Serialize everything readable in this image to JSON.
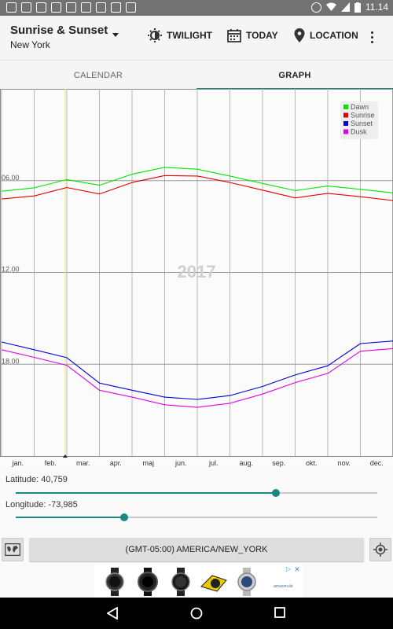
{
  "status_bar": {
    "time": "11.14"
  },
  "app_bar": {
    "title": "Sunrise & Sunset",
    "subtitle": "New York",
    "actions": [
      {
        "label": "TWILIGHT",
        "icon": "twilight-sun-icon"
      },
      {
        "label": "TODAY",
        "icon": "calendar-icon"
      },
      {
        "label": "LOCATION",
        "icon": "location-pin-icon"
      }
    ]
  },
  "tabs": [
    {
      "label": "CALENDAR",
      "selected": false
    },
    {
      "label": "GRAPH",
      "selected": true
    }
  ],
  "chart_data": {
    "type": "line",
    "year_label": "2017",
    "x_ticks": [
      "jan.",
      "feb.",
      "mar.",
      "apr.",
      "maj",
      "jun.",
      "jul.",
      "aug.",
      "sep.",
      "okt.",
      "nov.",
      "dec."
    ],
    "y_ticks": [
      "06.00",
      "12.00",
      "18.00"
    ],
    "y_axis": "time of day (hours), 0 at top, 24 at bottom",
    "ylim": [
      0,
      24
    ],
    "dst_start_month": 2.4,
    "dst_end_month": 10.2,
    "legend_position": "top-right",
    "series": [
      {
        "name": "Dawn",
        "color": "#00e600",
        "times": [
          6.69,
          6.47,
          5.93,
          6.3,
          5.58,
          5.13,
          5.25,
          5.7,
          6.18,
          6.65,
          6.35,
          6.57,
          6.8
        ]
      },
      {
        "name": "Sunrise",
        "color": "#e00000",
        "times": [
          7.2,
          7.0,
          6.45,
          6.87,
          6.12,
          5.67,
          5.7,
          6.12,
          6.62,
          7.13,
          6.83,
          7.05,
          7.3
        ]
      },
      {
        "name": "Sunset",
        "color": "#0000d8",
        "times": [
          16.55,
          17.05,
          17.57,
          19.23,
          19.7,
          20.15,
          20.3,
          20.05,
          19.45,
          18.7,
          18.1,
          16.65,
          16.48
        ]
      },
      {
        "name": "Dusk",
        "color": "#e000e0",
        "times": [
          17.05,
          17.55,
          18.07,
          19.7,
          20.15,
          20.65,
          20.82,
          20.55,
          19.95,
          19.2,
          18.6,
          17.15,
          16.98
        ]
      }
    ]
  },
  "latitude": {
    "label": "Latitude: 40,759",
    "fraction": 0.72
  },
  "longitude": {
    "label": "Longitude: -73,985",
    "fraction": 0.3
  },
  "timezone": {
    "label": "(GMT-05:00) AMERICA/NEW_YORK"
  },
  "ad": {
    "text": "amazon.de",
    "close": "✕",
    "info": "▷"
  },
  "nav": {
    "back": "◁",
    "home": "○",
    "recents": "□"
  }
}
